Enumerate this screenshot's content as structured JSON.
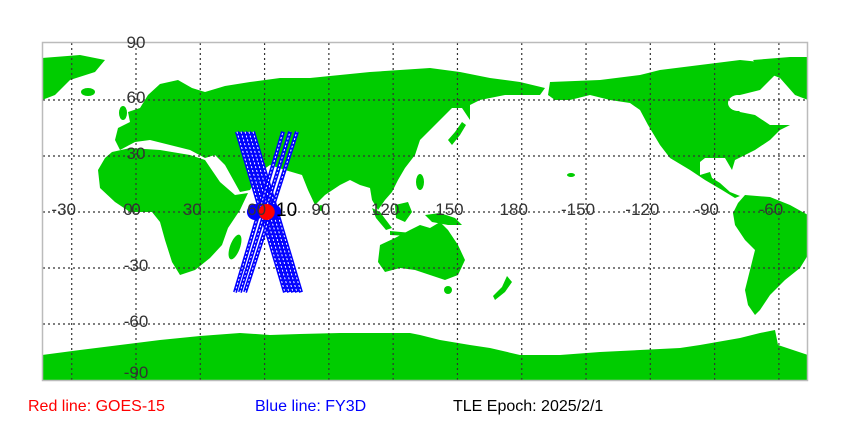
{
  "map": {
    "land_color": "#00cc00",
    "lat_labels": [
      "90",
      "60",
      "30",
      "0",
      "-30",
      "-60",
      "-90"
    ],
    "lon_labels": [
      "-30",
      "0",
      "30",
      "60",
      "90",
      "120",
      "150",
      "180",
      "-150",
      "-120",
      "-90",
      "-60"
    ],
    "marker_label": "10"
  },
  "satellites": [
    {
      "name": "GOES-15",
      "color": "#ff0000",
      "positions": [
        {
          "lon": 61,
          "lat": 0
        }
      ]
    },
    {
      "name": "FY3D",
      "color": "#0000ff",
      "positions": [
        {
          "lon": 55.5,
          "lat": 0
        },
        {
          "lon": 64,
          "lat": 0
        }
      ],
      "tracks": [
        {
          "from": {
            "lon": 47.1,
            "lat": 43
          },
          "to": {
            "lon": 69.5,
            "lat": -43
          }
        },
        {
          "from": {
            "lon": 49.0,
            "lat": 43
          },
          "to": {
            "lon": 71.4,
            "lat": -43
          }
        },
        {
          "from": {
            "lon": 50.9,
            "lat": 43
          },
          "to": {
            "lon": 73.3,
            "lat": -43
          }
        },
        {
          "from": {
            "lon": 52.7,
            "lat": 43
          },
          "to": {
            "lon": 75.1,
            "lat": -43
          }
        },
        {
          "from": {
            "lon": 54.6,
            "lat": 43
          },
          "to": {
            "lon": 77.0,
            "lat": -43
          }
        },
        {
          "from": {
            "lon": 46.2,
            "lat": -43
          },
          "to": {
            "lon": 68.6,
            "lat": 43
          }
        },
        {
          "from": {
            "lon": 48.5,
            "lat": -43
          },
          "to": {
            "lon": 71.9,
            "lat": 43
          }
        },
        {
          "from": {
            "lon": 50.9,
            "lat": -43
          },
          "to": {
            "lon": 75.1,
            "lat": 43
          }
        }
      ]
    }
  ],
  "legend": {
    "red": "Red line: GOES-15",
    "blue": "Blue line: FY3D",
    "epoch": "TLE Epoch: 2025/2/1"
  }
}
